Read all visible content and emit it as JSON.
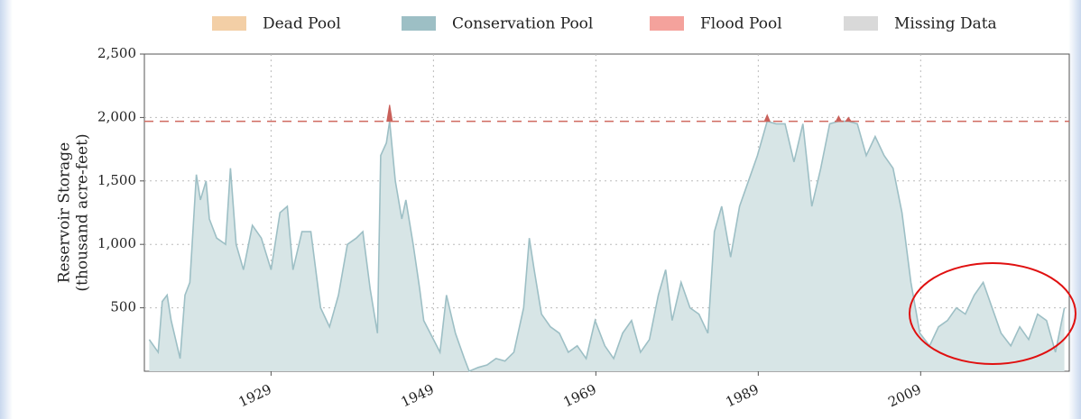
{
  "chart_data": {
    "type": "area",
    "y_label_lines": [
      "Reservoir Storage",
      "(thousand acre-feet)"
    ],
    "legend": [
      {
        "name": "Dead Pool",
        "color": "#f3cfa6"
      },
      {
        "name": "Conservation Pool",
        "color": "#9dbfc5"
      },
      {
        "name": "Flood Pool",
        "color": "#f4a29c"
      },
      {
        "name": "Missing Data",
        "color": "#d9d9d9"
      }
    ],
    "flood_level": 1970,
    "flood_line_color": "#d06a60",
    "xlim": [
      1913.4,
      2027.3
    ],
    "xticks": [
      1929,
      1949,
      1969,
      1989,
      2009
    ],
    "ylim": [
      0,
      2500
    ],
    "yticks": [
      {
        "value": 500,
        "label": "500"
      },
      {
        "value": 1000,
        "label": "1,000"
      },
      {
        "value": 1500,
        "label": "1,500"
      },
      {
        "value": 2000,
        "label": "2,000"
      },
      {
        "value": 2500,
        "label": "2,500"
      }
    ],
    "grid": true,
    "x": [
      1914.0,
      1915.1,
      1915.6,
      1916.2,
      1916.7,
      1917.8,
      1918.4,
      1919.0,
      1919.8,
      1920.3,
      1921.0,
      1921.4,
      1922.3,
      1923.4,
      1924.0,
      1924.7,
      1925.6,
      1926.7,
      1927.8,
      1929.0,
      1930.1,
      1931.0,
      1931.7,
      1932.8,
      1933.9,
      1935.1,
      1936.2,
      1937.3,
      1938.4,
      1939.5,
      1940.3,
      1941.2,
      1942.1,
      1942.5,
      1943.2,
      1943.6,
      1944.3,
      1945.1,
      1945.6,
      1946.5,
      1947.3,
      1947.8,
      1949.0,
      1949.8,
      1950.6,
      1951.7,
      1952.8,
      1953.4,
      1954.5,
      1955.6,
      1956.7,
      1957.8,
      1958.9,
      1960.1,
      1960.8,
      1961.4,
      1962.3,
      1963.4,
      1964.5,
      1965.6,
      1966.7,
      1967.8,
      1968.9,
      1970.1,
      1971.2,
      1972.3,
      1973.4,
      1974.5,
      1975.6,
      1976.7,
      1977.6,
      1978.4,
      1979.5,
      1980.6,
      1981.7,
      1982.8,
      1983.6,
      1984.5,
      1985.6,
      1986.7,
      1987.8,
      1988.9,
      1990.1,
      1991.2,
      1992.3,
      1993.4,
      1994.5,
      1995.6,
      1996.7,
      1997.8,
      1998.9,
      2000.1,
      2001.2,
      2002.3,
      2003.4,
      2004.5,
      2005.6,
      2006.7,
      2007.8,
      2008.9,
      2010.1,
      2011.2,
      2012.3,
      2013.4,
      2014.5,
      2015.6,
      2016.7,
      2017.8,
      2018.9,
      2020.1,
      2021.2,
      2022.3,
      2023.4,
      2024.5,
      2025.6,
      2026.7
    ],
    "series": [
      {
        "name": "Conservation Pool",
        "color": "#9dbfc5",
        "fill": "#d7e5e6",
        "values": [
          250,
          150,
          550,
          600,
          400,
          100,
          600,
          700,
          1550,
          1350,
          1500,
          1200,
          1050,
          1000,
          1600,
          1000,
          800,
          1150,
          1050,
          800,
          1250,
          1300,
          800,
          1100,
          1100,
          500,
          350,
          600,
          1000,
          1050,
          1100,
          650,
          300,
          1700,
          1800,
          1970,
          1500,
          1200,
          1350,
          1000,
          650,
          400,
          250,
          150,
          600,
          300,
          100,
          0,
          30,
          50,
          100,
          80,
          150,
          500,
          1050,
          800,
          450,
          350,
          300,
          150,
          200,
          100,
          400,
          200,
          100,
          300,
          400,
          150,
          250,
          600,
          800,
          400,
          700,
          500,
          450,
          300,
          1100,
          1300,
          900,
          1300,
          1500,
          1700,
          1970,
          1950,
          1950,
          1650,
          1950,
          1300,
          1600,
          1950,
          1970,
          1970,
          1950,
          1700,
          1850,
          1700,
          1600,
          1250,
          700,
          300,
          200,
          350,
          400,
          500,
          450,
          600,
          700,
          500,
          300,
          200,
          350,
          250,
          450,
          400,
          150,
          500
        ]
      },
      {
        "name": "Flood Pool",
        "color": "#c9605a",
        "values": [
          null,
          null,
          null,
          null,
          null,
          null,
          null,
          null,
          null,
          null,
          null,
          null,
          null,
          null,
          null,
          null,
          null,
          null,
          null,
          null,
          null,
          null,
          null,
          null,
          null,
          null,
          null,
          null,
          null,
          null,
          null,
          null,
          null,
          null,
          null,
          2100,
          null,
          null,
          null,
          null,
          null,
          null,
          null,
          null,
          null,
          null,
          null,
          null,
          null,
          null,
          null,
          null,
          null,
          null,
          null,
          null,
          null,
          null,
          null,
          null,
          null,
          null,
          null,
          null,
          null,
          null,
          null,
          null,
          null,
          null,
          null,
          null,
          null,
          null,
          null,
          null,
          null,
          null,
          null,
          null,
          null,
          null,
          2020,
          null,
          null,
          null,
          null,
          null,
          null,
          null,
          2010,
          2000,
          null,
          null,
          null,
          null,
          null,
          null,
          null,
          null,
          null,
          null,
          null,
          null,
          null,
          null,
          null,
          null,
          null,
          null,
          null,
          null,
          null,
          null,
          null,
          null
        ]
      }
    ]
  }
}
